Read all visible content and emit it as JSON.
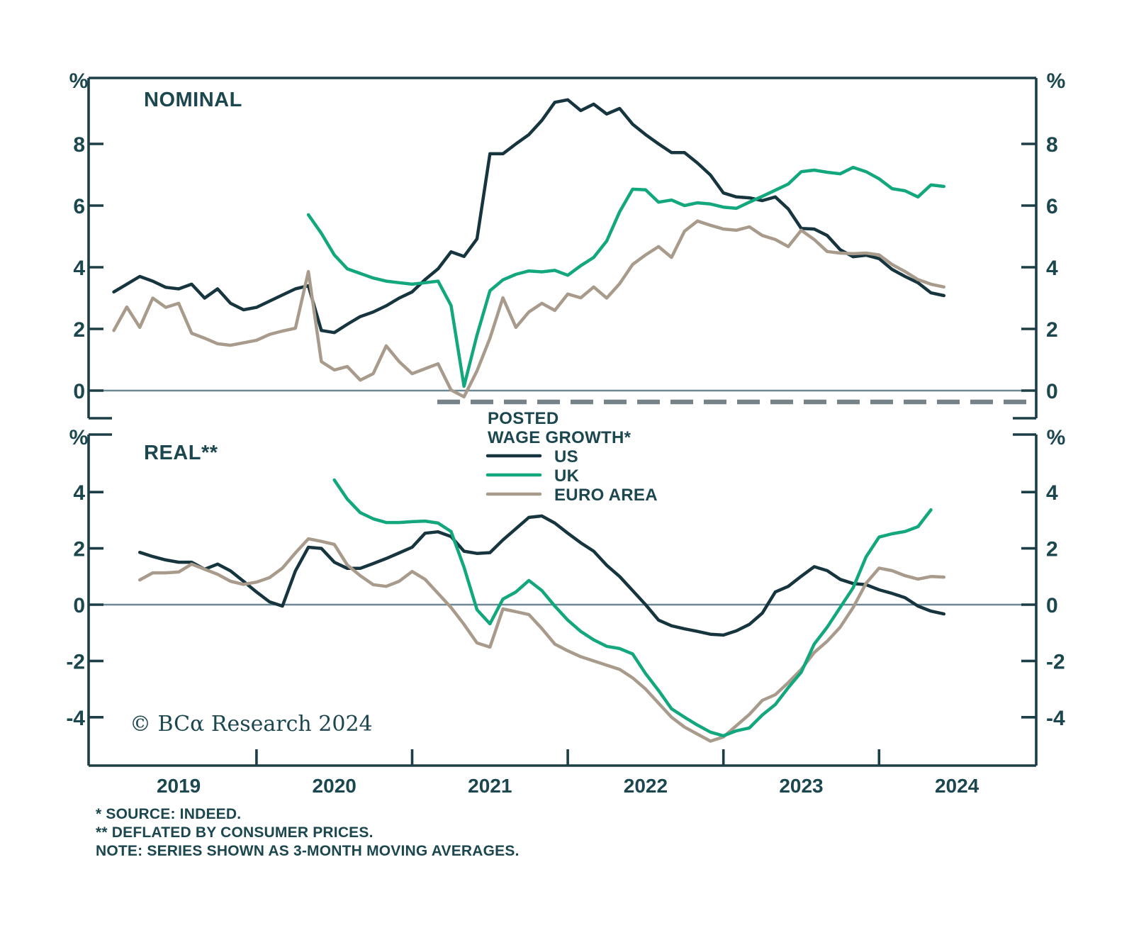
{
  "branding": {
    "copyright": "© BCα Research 2024"
  },
  "x_axis": {
    "year_labels": [
      "2019",
      "2020",
      "2021",
      "2022",
      "2023",
      "2024"
    ],
    "months_start": "2018-12",
    "months_end": "2024-06"
  },
  "legend": {
    "title_line1": "POSTED",
    "title_line2": "WAGE GROWTH*",
    "items": [
      {
        "label": "US",
        "color": "#17353F"
      },
      {
        "label": "UK",
        "color": "#12A77C"
      },
      {
        "label": "EURO AREA",
        "color": "#A89B8C"
      }
    ]
  },
  "footnotes": [
    "* SOURCE: INDEED.",
    "** DEFLATED BY CONSUMER PRICES.",
    "NOTE: SERIES SHOWN AS 3-MONTH MOVING AVERAGES."
  ],
  "chart_data": [
    {
      "id": "nominal",
      "type": "line",
      "title": "NOMINAL",
      "unit_label": "%",
      "ylabel": "%",
      "ylim": [
        -0.6,
        10.1
      ],
      "yticks": [
        8,
        6,
        4,
        2,
        0
      ],
      "grid": false,
      "x_months_from": "2018-12",
      "series": [
        {
          "name": "US",
          "color": "#17353F",
          "start_index": 2,
          "values": [
            3.2,
            3.45,
            3.7,
            3.55,
            3.35,
            3.3,
            3.45,
            3.0,
            3.3,
            2.83,
            2.62,
            2.7,
            2.9,
            3.1,
            3.3,
            3.4,
            1.95,
            1.88,
            2.15,
            2.4,
            2.55,
            2.75,
            3.0,
            3.2,
            3.6,
            3.95,
            4.5,
            4.35,
            4.92,
            7.68,
            7.68,
            8.0,
            8.3,
            8.76,
            9.35,
            9.43,
            9.08,
            9.29,
            8.97,
            9.15,
            8.64,
            8.3,
            8.0,
            7.72,
            7.72,
            7.38,
            6.99,
            6.41,
            6.28,
            6.25,
            6.16,
            6.28,
            5.89,
            5.26,
            5.24,
            5.03,
            4.57,
            4.34,
            4.39,
            4.28,
            3.93,
            3.7,
            3.5,
            3.17,
            3.08
          ]
        },
        {
          "name": "EURO AREA",
          "color": "#A89B8C",
          "start_index": 2,
          "values": [
            1.95,
            2.71,
            2.05,
            3.0,
            2.7,
            2.83,
            1.86,
            1.7,
            1.52,
            1.47,
            1.55,
            1.63,
            1.82,
            1.93,
            2.02,
            3.86,
            0.94,
            0.67,
            0.78,
            0.34,
            0.55,
            1.45,
            0.94,
            0.55,
            0.71,
            0.87,
            0.02,
            -0.2,
            0.64,
            1.7,
            3.01,
            2.05,
            2.55,
            2.83,
            2.6,
            3.13,
            3.01,
            3.36,
            3.0,
            3.47,
            4.09,
            4.4,
            4.67,
            4.32,
            5.17,
            5.5,
            5.36,
            5.24,
            5.2,
            5.31,
            5.03,
            4.9,
            4.67,
            5.2,
            4.9,
            4.51,
            4.46,
            4.44,
            4.46,
            4.4,
            4.09,
            3.86,
            3.6,
            3.45,
            3.36
          ]
        },
        {
          "name": "UK",
          "color": "#12A77C",
          "start_index": 17,
          "values": [
            5.7,
            5.1,
            4.4,
            3.95,
            3.8,
            3.65,
            3.55,
            3.5,
            3.45,
            3.5,
            3.55,
            2.76,
            0.14,
            1.8,
            3.24,
            3.59,
            3.77,
            3.88,
            3.85,
            3.9,
            3.74,
            4.05,
            4.32,
            4.85,
            5.8,
            6.53,
            6.51,
            6.11,
            6.18,
            6.0,
            6.09,
            6.05,
            5.95,
            5.91,
            6.11,
            6.3,
            6.5,
            6.7,
            7.1,
            7.15,
            7.08,
            7.03,
            7.24,
            7.1,
            6.87,
            6.55,
            6.48,
            6.28,
            6.67,
            6.62
          ]
        }
      ]
    },
    {
      "id": "real",
      "type": "line",
      "title": "REAL**",
      "unit_label": "%",
      "ylabel": "%",
      "ylim": [
        -5.7,
        6.1
      ],
      "yticks": [
        4,
        2,
        0,
        -2,
        -4
      ],
      "grid": false,
      "x_months_from": "2018-12",
      "series": [
        {
          "name": "US",
          "color": "#17353F",
          "start_index": 4,
          "values": [
            1.86,
            1.71,
            1.59,
            1.51,
            1.51,
            1.26,
            1.44,
            1.2,
            0.83,
            0.45,
            0.1,
            -0.05,
            1.2,
            2.04,
            2.0,
            1.51,
            1.29,
            1.29,
            1.46,
            1.64,
            1.84,
            2.04,
            2.54,
            2.59,
            2.42,
            1.9,
            1.82,
            1.85,
            2.3,
            2.7,
            3.1,
            3.15,
            2.9,
            2.54,
            2.2,
            1.9,
            1.4,
            1.0,
            0.5,
            0.0,
            -0.55,
            -0.75,
            -0.86,
            -0.95,
            -1.05,
            -1.08,
            -0.93,
            -0.7,
            -0.3,
            0.45,
            0.65,
            1.01,
            1.35,
            1.21,
            0.9,
            0.75,
            0.71,
            0.53,
            0.4,
            0.25,
            -0.05,
            -0.23,
            -0.33
          ]
        },
        {
          "name": "EURO AREA",
          "color": "#A89B8C",
          "start_index": 4,
          "values": [
            0.88,
            1.13,
            1.13,
            1.16,
            1.44,
            1.26,
            1.08,
            0.83,
            0.72,
            0.8,
            0.96,
            1.3,
            1.84,
            2.34,
            2.25,
            2.14,
            1.41,
            1.03,
            0.71,
            0.65,
            0.83,
            1.18,
            0.9,
            0.4,
            -0.1,
            -0.7,
            -1.36,
            -1.51,
            -0.15,
            -0.25,
            -0.35,
            -0.85,
            -1.4,
            -1.64,
            -1.85,
            -2.0,
            -2.15,
            -2.3,
            -2.6,
            -3.0,
            -3.5,
            -4.0,
            -4.35,
            -4.6,
            -4.85,
            -4.7,
            -4.3,
            -3.9,
            -3.4,
            -3.2,
            -2.77,
            -2.3,
            -1.7,
            -1.3,
            -0.8,
            -0.1,
            0.76,
            1.3,
            1.21,
            1.03,
            0.91,
            1.0,
            0.98
          ]
        },
        {
          "name": "UK",
          "color": "#12A77C",
          "start_index": 19,
          "values": [
            4.43,
            3.75,
            3.27,
            3.05,
            2.92,
            2.92,
            2.95,
            2.97,
            2.9,
            2.6,
            1.33,
            -0.18,
            -0.68,
            0.2,
            0.45,
            0.86,
            0.5,
            -0.05,
            -0.55,
            -0.95,
            -1.25,
            -1.48,
            -1.56,
            -1.75,
            -2.45,
            -3.05,
            -3.7,
            -4.0,
            -4.28,
            -4.53,
            -4.66,
            -4.48,
            -4.38,
            -3.92,
            -3.55,
            -2.95,
            -2.4,
            -1.4,
            -0.8,
            -0.1,
            0.6,
            1.7,
            2.4,
            2.52,
            2.6,
            2.77,
            3.37
          ]
        }
      ]
    }
  ]
}
